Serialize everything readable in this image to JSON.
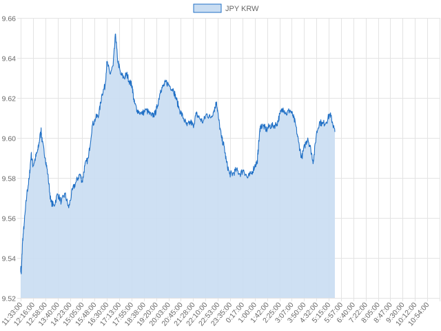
{
  "chart_data": {
    "type": "area",
    "title": "",
    "xlabel": "",
    "ylabel": "",
    "legend": {
      "position": "top-center",
      "entries": [
        "JPY KRW"
      ]
    },
    "grid": true,
    "ylim": [
      9.52,
      9.66
    ],
    "y_ticks": [
      "9.52",
      "9.54",
      "9.56",
      "9.58",
      "9.60",
      "9.62",
      "9.64",
      "9.66"
    ],
    "x_tick_labels": [
      "11:33:00",
      "12:16:00",
      "12:58:00",
      "13:40:00",
      "14:23:00",
      "15:05:00",
      "15:48:00",
      "16:30:00",
      "17:13:00",
      "17:55:00",
      "18:38:00",
      "19:20:00",
      "20:03:00",
      "20:45:00",
      "21:28:00",
      "22:10:00",
      "22:53:00",
      "23:35:00",
      "0:17:00",
      "1:00:00",
      "1:42:00",
      "2:25:00",
      "3:07:00",
      "3:50:00",
      "4:32:00",
      "5:15:00",
      "5:57:00",
      "6:40:00",
      "7:22:00",
      "8:05:00",
      "8:47:00",
      "9:30:00",
      "10:12:00",
      "10:54:00"
    ],
    "series": [
      {
        "name": "JPY KRW",
        "color": "#1f6fc5",
        "fill": "#c9ddf2",
        "keypoints": [
          [
            0,
            9.535
          ],
          [
            0.05,
            9.532
          ],
          [
            0.15,
            9.548
          ],
          [
            0.3,
            9.558
          ],
          [
            0.5,
            9.572
          ],
          [
            0.7,
            9.58
          ],
          [
            0.85,
            9.592
          ],
          [
            1.0,
            9.586
          ],
          [
            1.2,
            9.59
          ],
          [
            1.4,
            9.594
          ],
          [
            1.55,
            9.6
          ],
          [
            1.65,
            9.604
          ],
          [
            1.75,
            9.598
          ],
          [
            2.0,
            9.59
          ],
          [
            2.2,
            9.582
          ],
          [
            2.45,
            9.568
          ],
          [
            2.7,
            9.566
          ],
          [
            3.0,
            9.572
          ],
          [
            3.3,
            9.568
          ],
          [
            3.6,
            9.572
          ],
          [
            3.9,
            9.565
          ],
          [
            4.2,
            9.574
          ],
          [
            4.5,
            9.578
          ],
          [
            4.8,
            9.582
          ],
          [
            5.0,
            9.578
          ],
          [
            5.2,
            9.586
          ],
          [
            5.5,
            9.59
          ],
          [
            5.8,
            9.606
          ],
          [
            6.1,
            9.61
          ],
          [
            6.35,
            9.612
          ],
          [
            6.6,
            9.622
          ],
          [
            6.85,
            9.626
          ],
          [
            7.0,
            9.638
          ],
          [
            7.25,
            9.632
          ],
          [
            7.5,
            9.636
          ],
          [
            7.7,
            9.652
          ],
          [
            7.85,
            9.64
          ],
          [
            8.1,
            9.632
          ],
          [
            8.4,
            9.63
          ],
          [
            8.6,
            9.632
          ],
          [
            8.85,
            9.628
          ],
          [
            9.05,
            9.626
          ],
          [
            9.2,
            9.618
          ],
          [
            9.45,
            9.614
          ],
          [
            9.8,
            9.612
          ],
          [
            10.2,
            9.614
          ],
          [
            10.6,
            9.611
          ],
          [
            10.9,
            9.612
          ],
          [
            11.1,
            9.616
          ],
          [
            11.35,
            9.624
          ],
          [
            11.6,
            9.626
          ],
          [
            11.8,
            9.628
          ],
          [
            12.1,
            9.626
          ],
          [
            12.4,
            9.624
          ],
          [
            12.6,
            9.62
          ],
          [
            12.9,
            9.614
          ],
          [
            13.2,
            9.61
          ],
          [
            13.5,
            9.606
          ],
          [
            13.8,
            9.608
          ],
          [
            14.0,
            9.606
          ],
          [
            14.25,
            9.612
          ],
          [
            14.5,
            9.61
          ],
          [
            14.8,
            9.608
          ],
          [
            15.1,
            9.612
          ],
          [
            15.4,
            9.61
          ],
          [
            15.7,
            9.614
          ],
          [
            15.9,
            9.618
          ],
          [
            16.05,
            9.61
          ],
          [
            16.3,
            9.6
          ],
          [
            16.5,
            9.596
          ],
          [
            16.7,
            9.588
          ],
          [
            16.95,
            9.582
          ],
          [
            17.2,
            9.582
          ],
          [
            17.5,
            9.584
          ],
          [
            17.8,
            9.582
          ],
          [
            18.1,
            9.584
          ],
          [
            18.4,
            9.58
          ],
          [
            18.7,
            9.582
          ],
          [
            19.0,
            9.586
          ],
          [
            19.2,
            9.588
          ],
          [
            19.3,
            9.596
          ],
          [
            19.45,
            9.606
          ],
          [
            19.7,
            9.606
          ],
          [
            19.95,
            9.604
          ],
          [
            20.2,
            9.606
          ],
          [
            20.5,
            9.606
          ],
          [
            20.8,
            9.607
          ],
          [
            21.05,
            9.612
          ],
          [
            21.3,
            9.615
          ],
          [
            21.55,
            9.612
          ],
          [
            21.85,
            9.614
          ],
          [
            22.1,
            9.611
          ],
          [
            22.3,
            9.607
          ],
          [
            22.55,
            9.598
          ],
          [
            22.8,
            9.59
          ],
          [
            23.05,
            9.596
          ],
          [
            23.3,
            9.6
          ],
          [
            23.55,
            9.594
          ],
          [
            23.75,
            9.588
          ],
          [
            24.0,
            9.602
          ],
          [
            24.25,
            9.608
          ],
          [
            24.5,
            9.607
          ],
          [
            24.8,
            9.608
          ],
          [
            25.1,
            9.612
          ],
          [
            25.3,
            9.608
          ],
          [
            25.5,
            9.603
          ]
        ]
      }
    ]
  }
}
